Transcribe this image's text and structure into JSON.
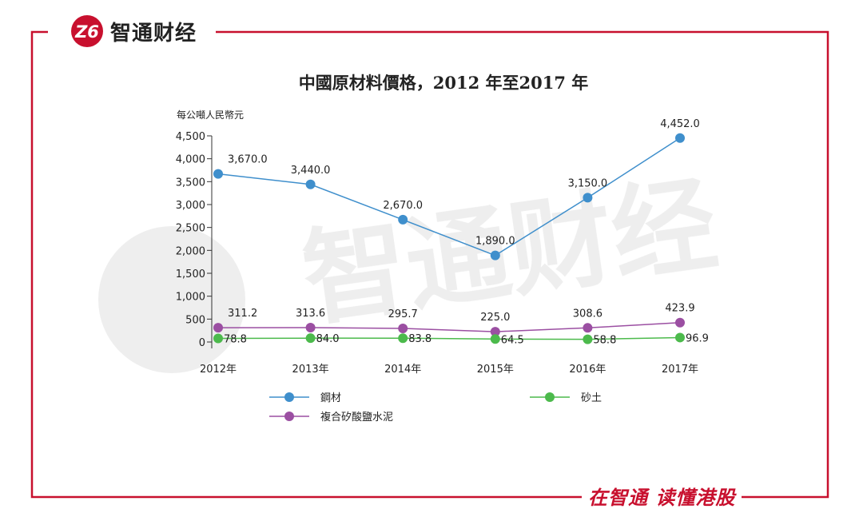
{
  "brand": {
    "name": "智通财经",
    "logo_letters": "Z6",
    "slogan": "在智通 读懂港股",
    "accent_color": "#c8102e"
  },
  "chart_data": {
    "type": "line",
    "title": "中國原材料價格，2012 年至2017 年",
    "ylabel": "每公噸人民幣元",
    "xlabel": "",
    "categories": [
      "2012年",
      "2013年",
      "2014年",
      "2015年",
      "2016年",
      "2017年"
    ],
    "ylim": [
      0,
      4500
    ],
    "yticks": [
      0,
      500,
      1000,
      1500,
      2000,
      2500,
      3000,
      3500,
      4000,
      4500
    ],
    "ytick_labels": [
      "0",
      "500",
      "1,000",
      "1,500",
      "2,000",
      "2,500",
      "3,000",
      "3,500",
      "4,000",
      "4,500"
    ],
    "series": [
      {
        "name": "鋼材",
        "color": "#3f8fcc",
        "values": [
          3670.0,
          3440.0,
          2670.0,
          1890.0,
          3150.0,
          4452.0
        ],
        "labels": [
          "3,670.0",
          "3,440.0",
          "2,670.0",
          "1,890.0",
          "3,150.0",
          "4,452.0"
        ]
      },
      {
        "name": "複合矽酸鹽水泥",
        "color": "#9b4fa2",
        "values": [
          311.2,
          313.6,
          295.7,
          225.0,
          308.6,
          423.9
        ],
        "labels": [
          "311.2",
          "313.6",
          "295.7",
          "225.0",
          "308.6",
          "423.9"
        ]
      },
      {
        "name": "砂土",
        "color": "#4cba4c",
        "values": [
          78.8,
          84.0,
          83.8,
          64.5,
          58.8,
          96.9
        ],
        "labels": [
          "78.8",
          "84.0",
          "83.8",
          "64.5",
          "58.8",
          "96.9"
        ]
      }
    ],
    "legend_position": "bottom",
    "grid": false
  }
}
